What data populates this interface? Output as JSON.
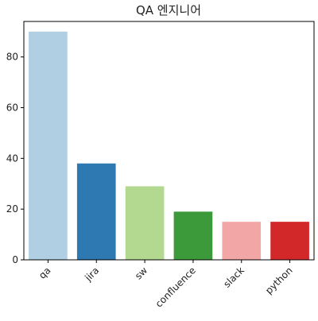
{
  "chart_data": {
    "type": "bar",
    "title": "QA 엔지니어",
    "xlabel": "",
    "ylabel": "",
    "categories": [
      "qa",
      "jira",
      "sw",
      "confluence",
      "slack",
      "python"
    ],
    "values": [
      90,
      38,
      29,
      19,
      15,
      15
    ],
    "colors": [
      "#b0cfe2",
      "#2e79b1",
      "#b3d88f",
      "#3c9a3a",
      "#f2a7a6",
      "#d3282a"
    ],
    "ylim": [
      0,
      94
    ],
    "yticks": [
      0,
      20,
      40,
      60,
      80
    ],
    "grid": false,
    "legend": "none"
  }
}
